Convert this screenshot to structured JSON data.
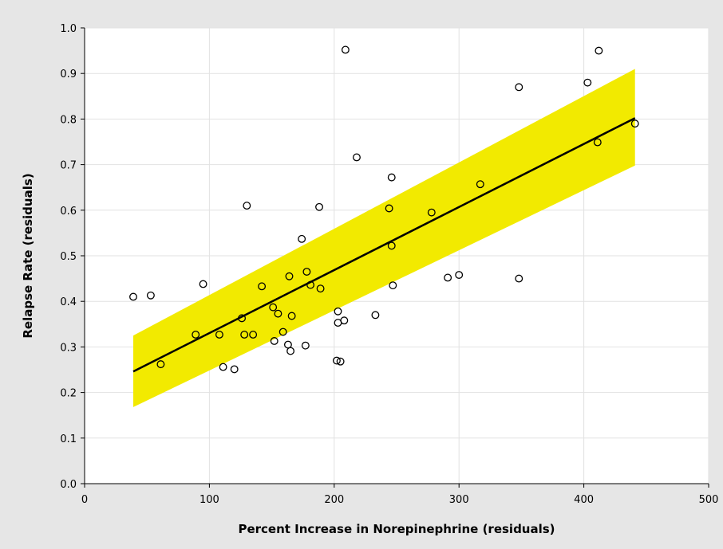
{
  "chart_data": {
    "type": "scatter",
    "title": "",
    "xlabel": "Percent Increase in Norepinephrine (residuals)",
    "ylabel": "Relapse Rate (residuals)",
    "xlim": [
      0,
      500
    ],
    "ylim": [
      0.0,
      1.0
    ],
    "x_ticks": [
      "0",
      "100",
      "200",
      "300",
      "400",
      "500"
    ],
    "y_ticks": [
      "0.0",
      "0.1",
      "0.2",
      "0.3",
      "0.4",
      "0.5",
      "0.6",
      "0.7",
      "0.8",
      "0.9",
      "1.0"
    ],
    "grid": true,
    "colors": {
      "band": "#f2ea00",
      "line": "#000000",
      "points": "#000000",
      "background": "#ffffff",
      "frame": "#e6e6e6"
    },
    "series": [
      {
        "values": [
          [
            39,
            0.41
          ],
          [
            53,
            0.413
          ],
          [
            61,
            0.262
          ],
          [
            89,
            0.327
          ],
          [
            95,
            0.438
          ],
          [
            108,
            0.327
          ],
          [
            111,
            0.256
          ],
          [
            120,
            0.251
          ],
          [
            126,
            0.363
          ],
          [
            128,
            0.327
          ],
          [
            130,
            0.61
          ],
          [
            135,
            0.327
          ],
          [
            142,
            0.433
          ],
          [
            151,
            0.387
          ],
          [
            152,
            0.313
          ],
          [
            155,
            0.373
          ],
          [
            159,
            0.333
          ],
          [
            163,
            0.305
          ],
          [
            164,
            0.455
          ],
          [
            165,
            0.291
          ],
          [
            166,
            0.368
          ],
          [
            174,
            0.537
          ],
          [
            177,
            0.303
          ],
          [
            178,
            0.465
          ],
          [
            181,
            0.436
          ],
          [
            188,
            0.607
          ],
          [
            189,
            0.428
          ],
          [
            202,
            0.27
          ],
          [
            203,
            0.378
          ],
          [
            203,
            0.353
          ],
          [
            205,
            0.268
          ],
          [
            208,
            0.358
          ],
          [
            209,
            0.952
          ],
          [
            218,
            0.716
          ],
          [
            233,
            0.37
          ],
          [
            244,
            0.604
          ],
          [
            246,
            0.522
          ],
          [
            246,
            0.672
          ],
          [
            247,
            0.435
          ],
          [
            278,
            0.595
          ],
          [
            291,
            0.452
          ],
          [
            300,
            0.458
          ],
          [
            317,
            0.657
          ],
          [
            348,
            0.87
          ],
          [
            348,
            0.45
          ],
          [
            403,
            0.88
          ],
          [
            411,
            0.749
          ],
          [
            412,
            0.95
          ],
          [
            441,
            0.79
          ]
        ]
      }
    ],
    "fit_line": {
      "x": [
        39,
        441
      ],
      "y": [
        0.246,
        0.802
      ]
    },
    "confidence_band": {
      "x": [
        39,
        441
      ],
      "lower": [
        0.168,
        0.698
      ],
      "upper": [
        0.325,
        0.91
      ]
    }
  }
}
